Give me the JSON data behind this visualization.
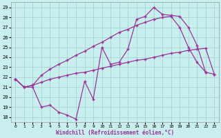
{
  "xlabel": "Windchill (Refroidissement éolien,°C)",
  "bg_color": "#c8eeee",
  "grid_color": "#a8d8d8",
  "line_color": "#993399",
  "xlim": [
    -0.5,
    23.5
  ],
  "ylim": [
    17.5,
    29.5
  ],
  "yticks": [
    18,
    19,
    20,
    21,
    22,
    23,
    24,
    25,
    26,
    27,
    28,
    29
  ],
  "xticks": [
    0,
    1,
    2,
    3,
    4,
    5,
    6,
    7,
    8,
    9,
    10,
    11,
    12,
    13,
    14,
    15,
    16,
    17,
    18,
    19,
    20,
    21,
    22,
    23
  ],
  "line1_x": [
    0,
    1,
    2,
    3,
    4,
    5,
    6,
    7,
    8,
    9,
    10,
    11,
    12,
    13,
    14,
    15,
    16,
    17,
    18,
    19,
    20,
    21,
    22,
    23
  ],
  "line1_y": [
    21.8,
    21.0,
    21.0,
    19.0,
    19.2,
    18.5,
    18.2,
    17.8,
    21.6,
    19.8,
    25.0,
    23.3,
    23.5,
    24.8,
    27.8,
    28.1,
    29.0,
    28.3,
    28.2,
    28.1,
    27.0,
    25.2,
    22.5,
    22.3
  ],
  "line2_x": [
    0,
    1,
    2,
    3,
    4,
    5,
    6,
    7,
    8,
    9,
    10,
    11,
    12,
    13,
    14,
    15,
    16,
    17,
    18,
    19,
    20,
    21,
    22,
    23
  ],
  "line2_y": [
    21.8,
    21.0,
    21.2,
    22.2,
    22.8,
    23.3,
    23.7,
    24.2,
    24.6,
    25.1,
    25.5,
    26.0,
    26.5,
    26.8,
    27.2,
    27.5,
    27.8,
    28.0,
    28.1,
    27.0,
    25.0,
    23.5,
    22.5,
    null
  ],
  "line3_x": [
    0,
    1,
    2,
    3,
    4,
    5,
    6,
    7,
    8,
    9,
    10,
    11,
    12,
    13,
    14,
    15,
    16,
    17,
    18,
    19,
    20,
    21,
    22,
    23
  ],
  "line3_y": [
    21.8,
    21.0,
    21.2,
    21.5,
    21.8,
    22.0,
    22.2,
    22.4,
    22.5,
    22.7,
    22.9,
    23.1,
    23.3,
    23.5,
    23.7,
    23.8,
    24.0,
    24.2,
    24.4,
    24.5,
    24.7,
    24.8,
    24.9,
    22.3
  ]
}
